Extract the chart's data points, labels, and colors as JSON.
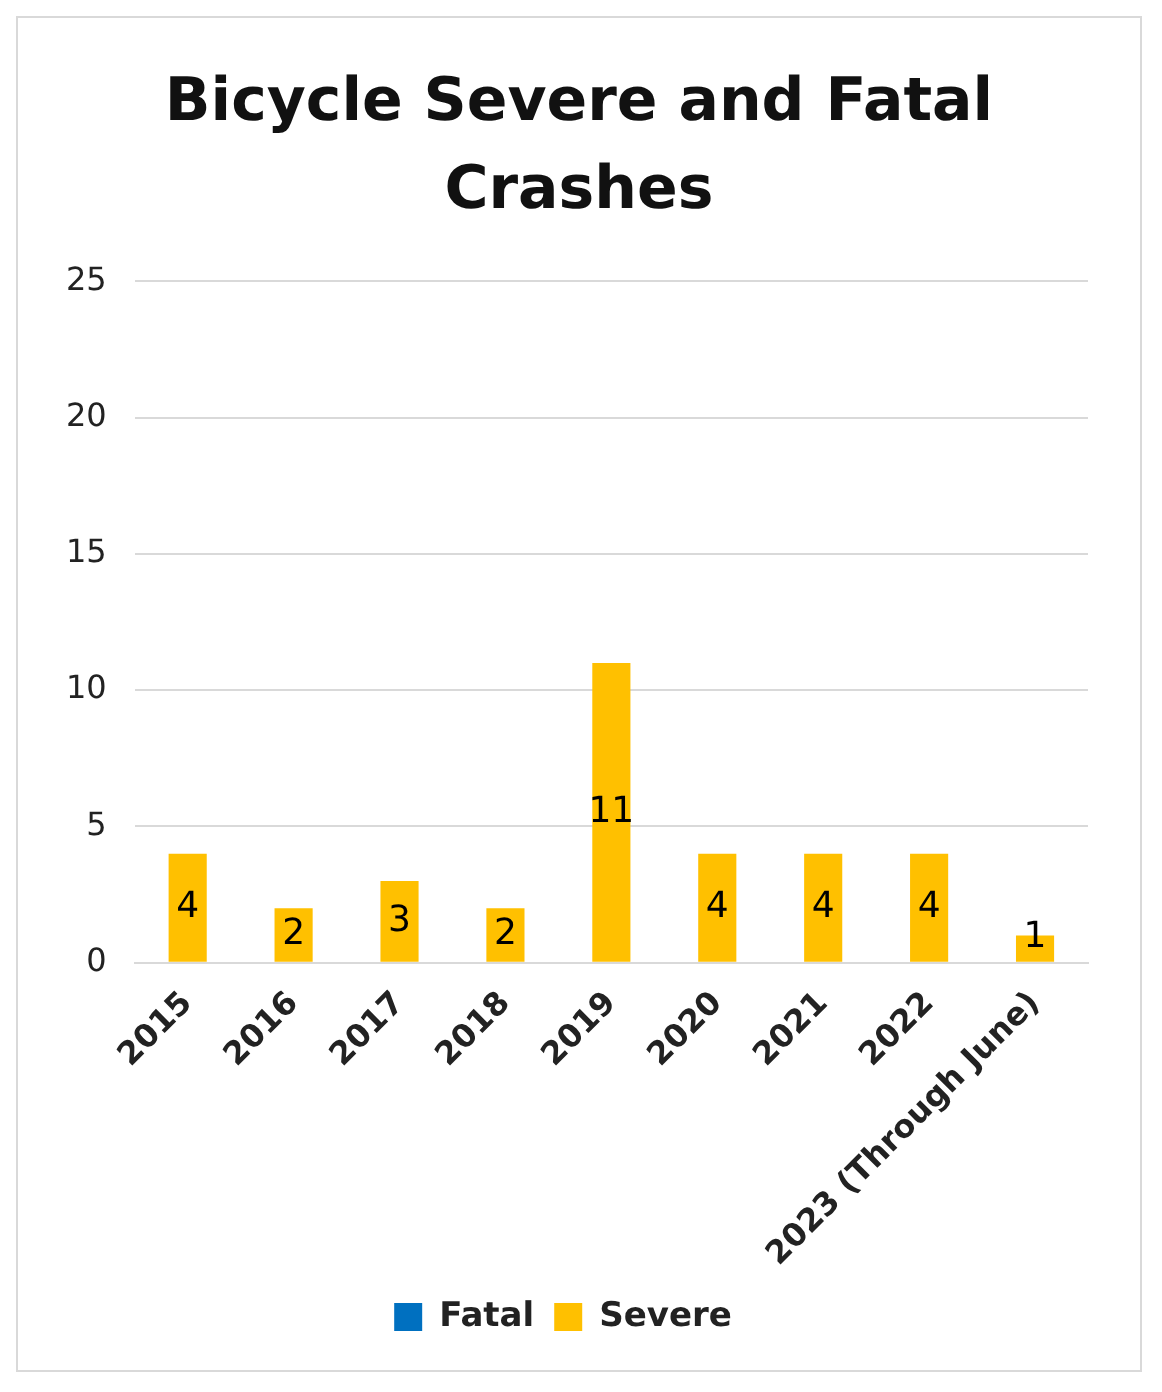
{
  "chart_data": {
    "type": "bar",
    "title": "Bicycle Severe and Fatal Crashes",
    "categories": [
      "2015",
      "2016",
      "2017",
      "2018",
      "2019",
      "2020",
      "2021",
      "2022",
      "2023 (Through June)"
    ],
    "series": [
      {
        "name": "Fatal",
        "color": "#0070c0",
        "values": [
          0,
          0,
          0,
          0,
          0,
          0,
          0,
          0,
          0
        ]
      },
      {
        "name": "Severe",
        "color": "#ffc000",
        "values": [
          4,
          2,
          3,
          2,
          11,
          4,
          4,
          4,
          1
        ],
        "value_labels": [
          "4",
          "2",
          "3",
          "2",
          "11",
          "4",
          "4",
          "4",
          "1"
        ]
      }
    ],
    "stacked": true,
    "ylim": [
      0,
      25
    ],
    "yticks": [
      0,
      5,
      10,
      15,
      20,
      25
    ],
    "grid": "y",
    "legend": "bottom"
  }
}
